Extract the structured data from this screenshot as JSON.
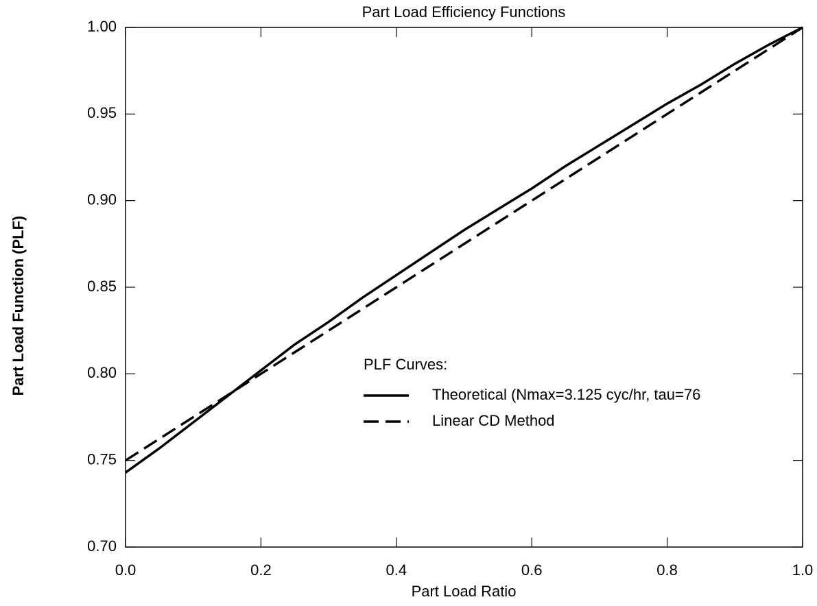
{
  "chart_data": {
    "type": "line",
    "title": "Part Load Efficiency Functions",
    "x_label": "Part Load Ratio",
    "y_label": "Part Load Function (PLF)",
    "x": [
      0,
      0.05,
      0.1,
      0.15,
      0.2,
      0.25,
      0.3,
      0.35,
      0.4,
      0.45,
      0.5,
      0.55,
      0.6,
      0.65,
      0.7,
      0.75,
      0.8,
      0.85,
      0.9,
      0.95,
      1.0
    ],
    "series": [
      {
        "name": "Theoretical (Nmax=3.125 cyc/hr, tau=76",
        "color": "#000000",
        "dashed": false,
        "values": [
          0.743,
          0.757,
          0.772,
          0.787,
          0.802,
          0.817,
          0.83,
          0.844,
          0.857,
          0.87,
          0.883,
          0.895,
          0.907,
          0.92,
          0.932,
          0.944,
          0.956,
          0.967,
          0.979,
          0.99,
          1.0
        ]
      },
      {
        "name": "Linear CD Method",
        "color": "#000000",
        "dashed": true,
        "values": [
          0.75,
          0.7625,
          0.775,
          0.7875,
          0.8,
          0.8125,
          0.825,
          0.8375,
          0.85,
          0.8625,
          0.875,
          0.8875,
          0.9,
          0.9125,
          0.925,
          0.9375,
          0.95,
          0.9625,
          0.975,
          0.9875,
          1.0
        ]
      }
    ],
    "legend_title": "PLF Curves:",
    "xlim": [
      0,
      1.0
    ],
    "ylim": [
      0.7,
      1.0
    ],
    "xticks": [
      {
        "value": 0,
        "label": "0.0"
      },
      0.2,
      0.4,
      0.6,
      0.8,
      {
        "value": 1.0,
        "label": "1.0"
      }
    ],
    "yticks": [
      {
        "value": 0.7,
        "label": "0.70"
      },
      0.75,
      {
        "value": 0.8,
        "label": "0.80"
      },
      0.85,
      {
        "value": 0.9,
        "label": "0.90"
      },
      0.95,
      {
        "value": 1.0,
        "label": "1.00"
      }
    ]
  }
}
